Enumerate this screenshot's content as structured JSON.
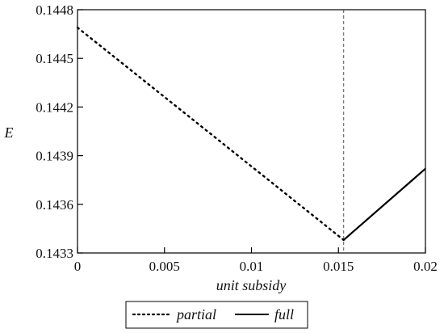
{
  "chart_data": {
    "type": "line",
    "title": "",
    "xlabel": "unit subsidy",
    "ylabel": "E",
    "xlim": [
      0,
      0.02
    ],
    "ylim": [
      0.1433,
      0.1448
    ],
    "x_ticks": [
      0,
      0.005,
      0.01,
      0.015,
      0.02
    ],
    "x_tick_labels": [
      "0",
      "0.005",
      "0.01",
      "0.015",
      "0.02"
    ],
    "y_ticks": [
      0.1433,
      0.1436,
      0.1439,
      0.1442,
      0.1445,
      0.1448
    ],
    "y_tick_labels": [
      "0.1433",
      "0.1436",
      "0.1439",
      "0.1442",
      "0.1445",
      "0.1448"
    ],
    "grid": false,
    "legend_position": "bottom",
    "reference_lines": [
      {
        "orientation": "vertical",
        "x": 0.0153,
        "style": "dashed",
        "color": "#555555"
      }
    ],
    "series": [
      {
        "name": "partial",
        "style": "dotted",
        "color": "#000000",
        "points": [
          [
            0,
            0.14469
          ],
          [
            0.0153,
            0.14338
          ]
        ]
      },
      {
        "name": "full",
        "style": "solid",
        "color": "#000000",
        "points": [
          [
            0.0153,
            0.14338
          ],
          [
            0.02,
            0.14382
          ]
        ]
      }
    ]
  }
}
